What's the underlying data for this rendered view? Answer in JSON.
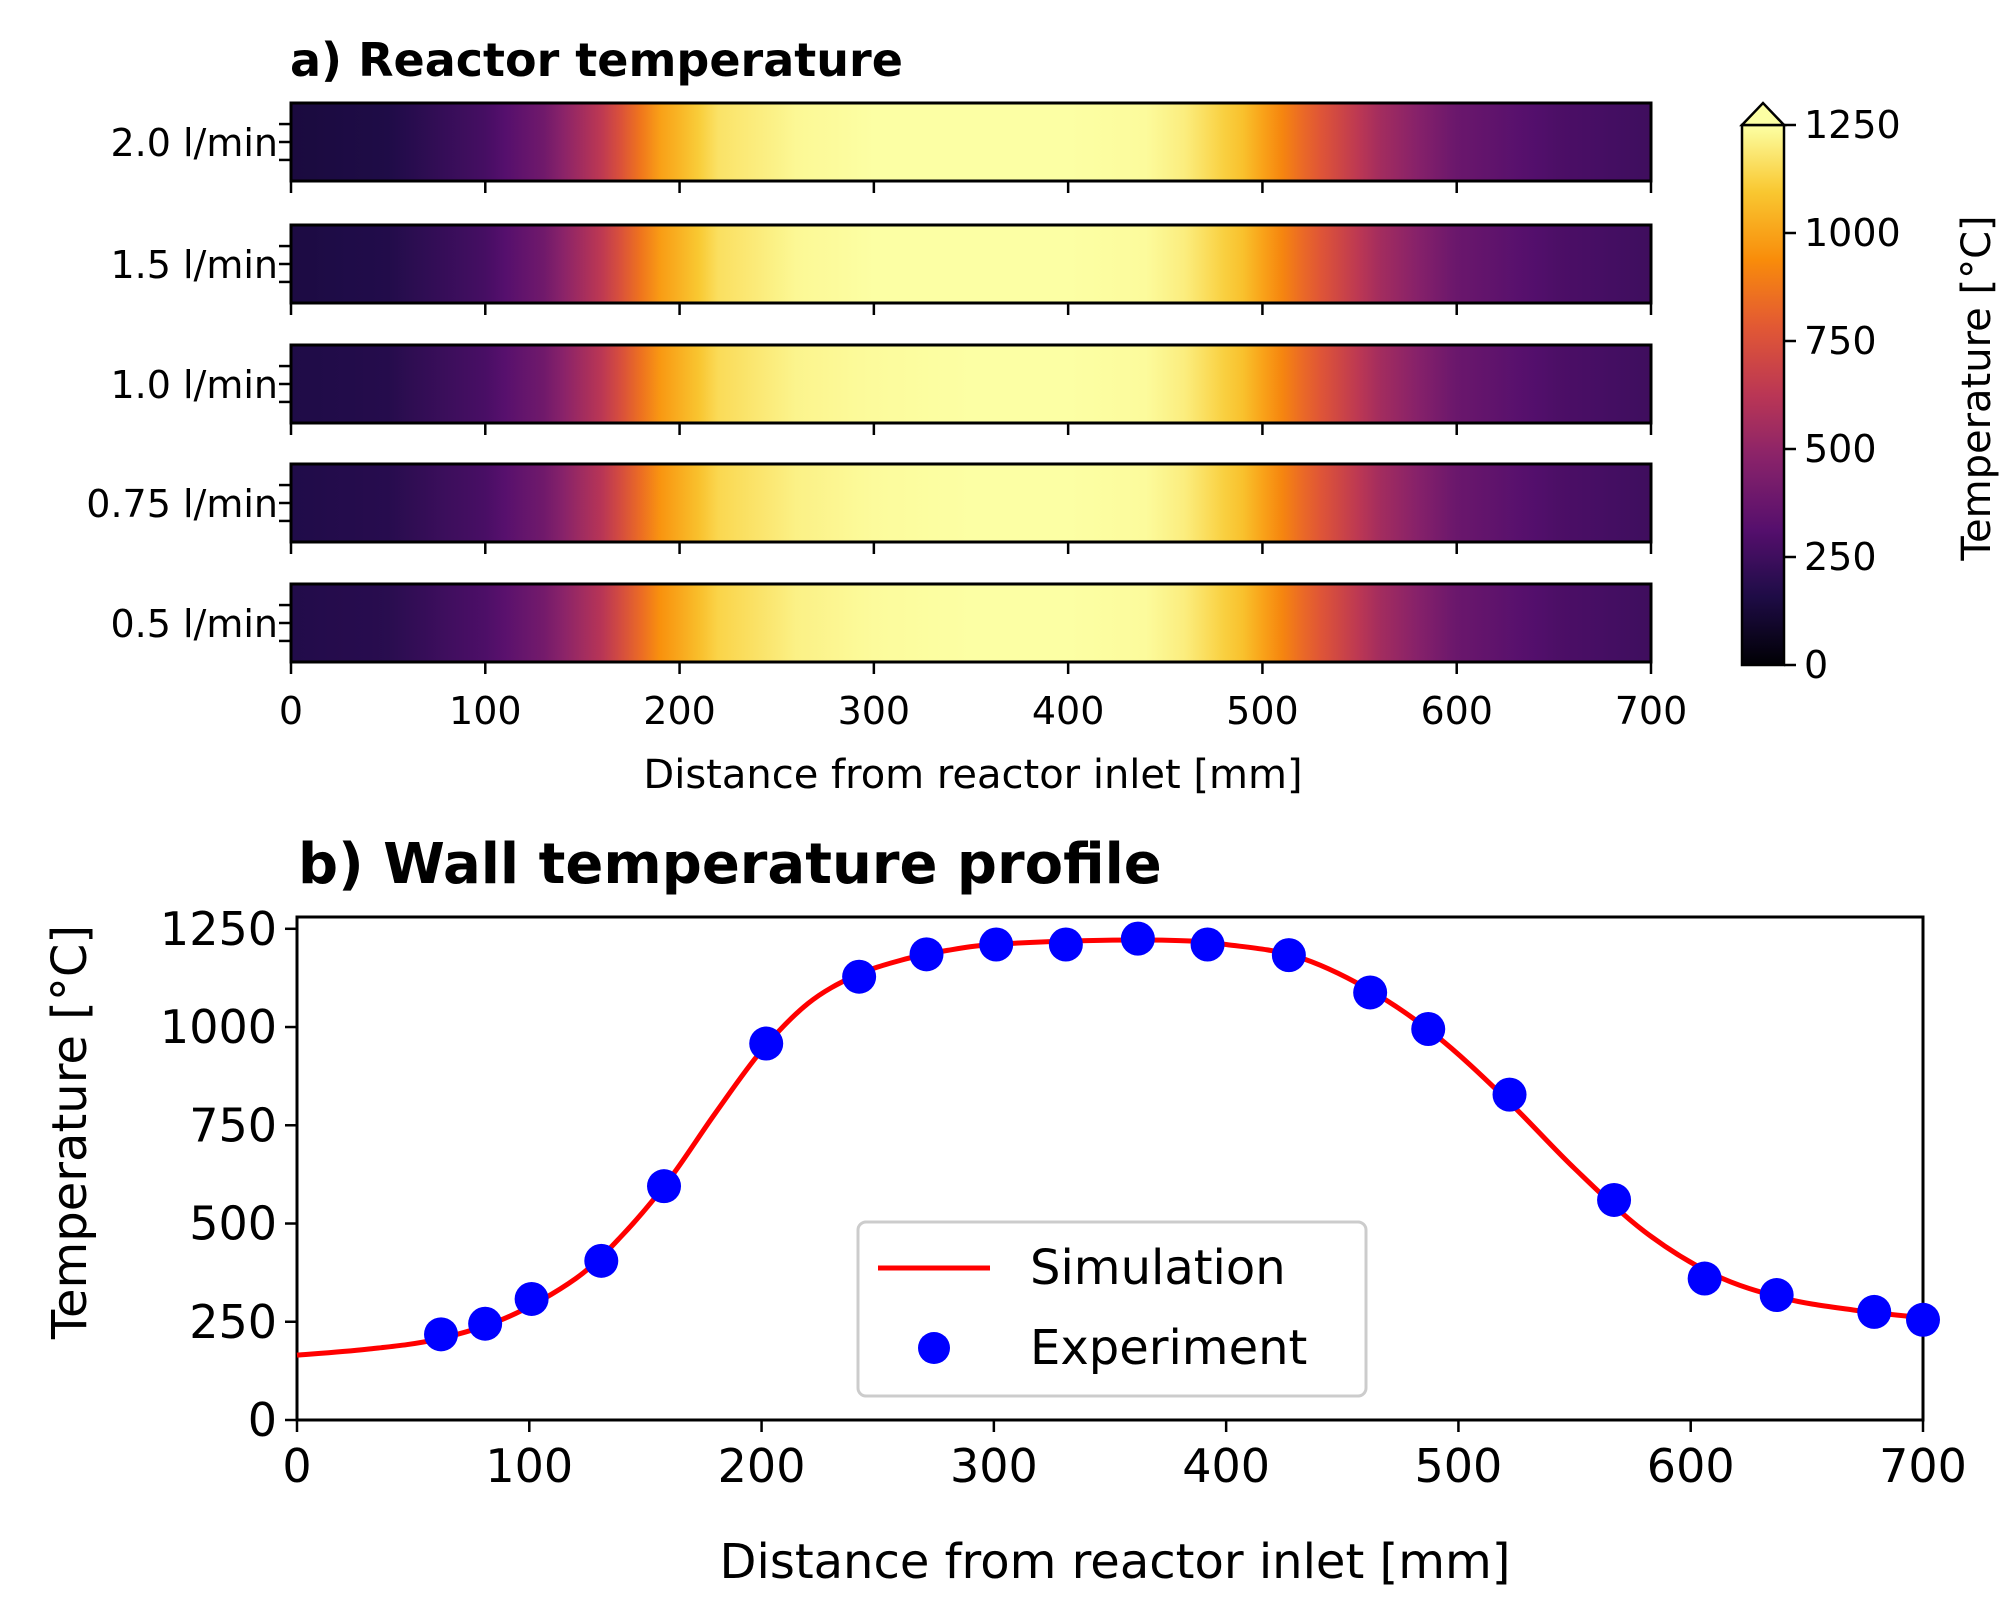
{
  "chart_data": [
    {
      "type": "heatmap",
      "title": "a) Reactor temperature",
      "xlabel": "Distance from reactor inlet [mm]",
      "xlim": [
        0,
        700
      ],
      "xticks": [
        0,
        100,
        200,
        300,
        400,
        500,
        600,
        700
      ],
      "rows": [
        "2.0 l/min",
        "1.5 l/min",
        "1.0 l/min",
        "0.75 l/min",
        "0.5 l/min"
      ],
      "row_profiles": [
        {
          "x": [
            0,
            50,
            100,
            130,
            160,
            190,
            220,
            260,
            300,
            350,
            400,
            440,
            460,
            490,
            520,
            560,
            600,
            650,
            700
          ],
          "t": [
            140,
            160,
            270,
            400,
            640,
            990,
            1170,
            1230,
            1250,
            1250,
            1250,
            1240,
            1200,
            1080,
            840,
            560,
            380,
            290,
            250
          ]
        },
        {
          "x": [
            0,
            50,
            100,
            130,
            160,
            190,
            220,
            260,
            300,
            350,
            400,
            440,
            460,
            490,
            520,
            560,
            600,
            650,
            700
          ],
          "t": [
            150,
            170,
            270,
            400,
            640,
            980,
            1160,
            1230,
            1250,
            1250,
            1250,
            1240,
            1200,
            1080,
            840,
            560,
            380,
            290,
            250
          ]
        },
        {
          "x": [
            0,
            50,
            100,
            130,
            160,
            190,
            220,
            260,
            300,
            350,
            400,
            440,
            460,
            490,
            520,
            560,
            600,
            650,
            700
          ],
          "t": [
            160,
            180,
            280,
            400,
            630,
            970,
            1150,
            1220,
            1240,
            1250,
            1250,
            1240,
            1200,
            1080,
            840,
            560,
            380,
            290,
            250
          ]
        },
        {
          "x": [
            0,
            50,
            100,
            130,
            160,
            190,
            220,
            260,
            300,
            350,
            400,
            440,
            460,
            490,
            520,
            560,
            600,
            650,
            700
          ],
          "t": [
            165,
            185,
            280,
            400,
            620,
            960,
            1140,
            1210,
            1240,
            1250,
            1250,
            1240,
            1200,
            1080,
            840,
            560,
            380,
            290,
            250
          ]
        },
        {
          "x": [
            0,
            50,
            100,
            130,
            160,
            190,
            220,
            260,
            300,
            350,
            400,
            440,
            460,
            490,
            520,
            560,
            600,
            650,
            700
          ],
          "t": [
            170,
            190,
            290,
            410,
            620,
            950,
            1130,
            1210,
            1240,
            1250,
            1250,
            1240,
            1200,
            1080,
            840,
            560,
            380,
            290,
            250
          ]
        }
      ],
      "colormap": "inferno",
      "colorbar": {
        "label": "Temperature [°C]",
        "range": [
          0,
          1250
        ],
        "ticks": [
          0,
          250,
          500,
          750,
          1000,
          1250
        ],
        "extend": "max"
      }
    },
    {
      "type": "line",
      "title": "b) Wall temperature profile",
      "xlabel": "Distance from reactor inlet [mm]",
      "ylabel": "Temperature [°C]",
      "xlim": [
        0,
        700
      ],
      "ylim": [
        0,
        1280
      ],
      "xticks": [
        0,
        100,
        200,
        300,
        400,
        500,
        600,
        700
      ],
      "yticks": [
        0,
        250,
        500,
        750,
        1000,
        1250
      ],
      "legend_position": "lower-center",
      "series": [
        {
          "name": "Simulation",
          "style": "line",
          "color": "#ff0000",
          "x": [
            0,
            30,
            60,
            90,
            120,
            140,
            160,
            180,
            200,
            220,
            240,
            260,
            280,
            300,
            340,
            380,
            400,
            430,
            460,
            490,
            520,
            550,
            580,
            610,
            640,
            670,
            700
          ],
          "y": [
            165,
            180,
            205,
            260,
            360,
            470,
            610,
            780,
            940,
            1060,
            1130,
            1170,
            1195,
            1210,
            1220,
            1220,
            1210,
            1180,
            1100,
            980,
            820,
            640,
            480,
            370,
            310,
            280,
            260
          ]
        },
        {
          "name": "Experiment",
          "style": "marker",
          "color": "#0000ff",
          "x": [
            62,
            81,
            101,
            131,
            158,
            202,
            242,
            271,
            301,
            331,
            362,
            392,
            427,
            462,
            487,
            522,
            567,
            606,
            637,
            679,
            700
          ],
          "y": [
            218,
            245,
            308,
            405,
            595,
            958,
            1128,
            1185,
            1210,
            1210,
            1225,
            1210,
            1183,
            1088,
            995,
            828,
            560,
            360,
            318,
            275,
            255
          ]
        }
      ]
    }
  ]
}
